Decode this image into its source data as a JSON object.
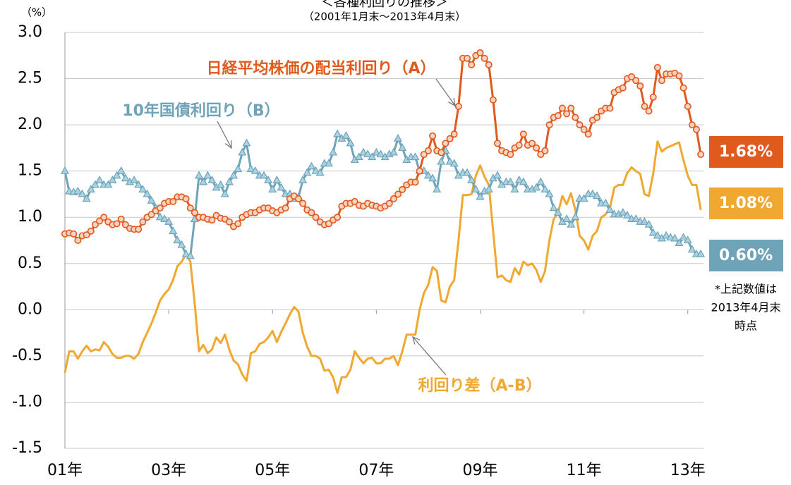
{
  "chart_data": {
    "type": "line",
    "title": "＜各種利回りの推移＞",
    "subtitle": "（2001年1月末～2013年4月末）",
    "y_label": "（%）",
    "categories": [
      "01年",
      null,
      null,
      null,
      null,
      null,
      null,
      null,
      null,
      null,
      null,
      null,
      null,
      null,
      null,
      null,
      null,
      null,
      null,
      null,
      null,
      null,
      null,
      null,
      "03年",
      null,
      null,
      null,
      null,
      null,
      null,
      null,
      null,
      null,
      null,
      null,
      null,
      null,
      null,
      null,
      null,
      null,
      null,
      null,
      null,
      null,
      null,
      null,
      "05年",
      null,
      null,
      null,
      null,
      null,
      null,
      null,
      null,
      null,
      null,
      null,
      null,
      null,
      null,
      null,
      null,
      null,
      null,
      null,
      null,
      null,
      null,
      null,
      "07年",
      null,
      null,
      null,
      null,
      null,
      null,
      null,
      null,
      null,
      null,
      null,
      null,
      null,
      null,
      null,
      null,
      null,
      null,
      null,
      null,
      null,
      null,
      null,
      "09年",
      null,
      null,
      null,
      null,
      null,
      null,
      null,
      null,
      null,
      null,
      null,
      null,
      null,
      null,
      null,
      null,
      null,
      null,
      null,
      null,
      null,
      null,
      null,
      "11年",
      null,
      null,
      null,
      null,
      null,
      null,
      null,
      null,
      null,
      null,
      null,
      null,
      null,
      null,
      null,
      null,
      null,
      null,
      null,
      null,
      null,
      null,
      null,
      "13年",
      null,
      null,
      null
    ],
    "series": [
      {
        "name": "日経平均株価の配当利回り（A）",
        "color": "#e05a1e",
        "marker": "circle",
        "end_label": "1.68%",
        "values": [
          0.82,
          0.83,
          0.82,
          0.75,
          0.8,
          0.81,
          0.85,
          0.92,
          0.96,
          1.0,
          0.95,
          0.92,
          0.93,
          0.98,
          0.92,
          0.88,
          0.87,
          0.87,
          0.95,
          1.0,
          1.03,
          1.07,
          1.1,
          1.15,
          1.17,
          1.17,
          1.22,
          1.22,
          1.2,
          1.1,
          1.05,
          1.0,
          1.0,
          0.98,
          0.97,
          1.02,
          0.99,
          0.98,
          0.95,
          0.9,
          0.93,
          1.0,
          1.03,
          1.05,
          1.05,
          1.08,
          1.1,
          1.1,
          1.07,
          1.05,
          1.08,
          1.1,
          1.2,
          1.23,
          1.2,
          1.15,
          1.08,
          1.05,
          1.0,
          0.95,
          0.92,
          0.93,
          0.97,
          1.0,
          1.12,
          1.15,
          1.15,
          1.17,
          1.13,
          1.12,
          1.15,
          1.13,
          1.12,
          1.1,
          1.12,
          1.15,
          1.2,
          1.25,
          1.3,
          1.35,
          1.38,
          1.38,
          1.5,
          1.68,
          1.72,
          1.88,
          1.72,
          1.7,
          1.8,
          1.85,
          1.9,
          2.2,
          2.72,
          2.72,
          2.65,
          2.75,
          2.78,
          2.72,
          2.65,
          2.27,
          1.8,
          1.72,
          1.7,
          1.68,
          1.75,
          1.78,
          1.9,
          1.78,
          1.8,
          1.75,
          1.68,
          1.72,
          2.0,
          2.08,
          2.1,
          2.18,
          2.12,
          2.18,
          2.08,
          2.0,
          1.95,
          1.9,
          2.05,
          2.08,
          2.15,
          2.18,
          2.18,
          2.35,
          2.38,
          2.4,
          2.5,
          2.52,
          2.48,
          2.42,
          2.2,
          2.15,
          2.3,
          2.62,
          2.48,
          2.55,
          2.55,
          2.56,
          2.53,
          2.4,
          2.2,
          2.0,
          1.95,
          1.68
        ]
      },
      {
        "name": "10年国債利回り（B）",
        "color": "#6fa3b8",
        "marker": "triangle",
        "end_label": "0.60%",
        "values": [
          1.5,
          1.28,
          1.27,
          1.28,
          1.25,
          1.2,
          1.3,
          1.35,
          1.4,
          1.35,
          1.35,
          1.4,
          1.45,
          1.5,
          1.42,
          1.38,
          1.4,
          1.35,
          1.3,
          1.25,
          1.18,
          1.1,
          1.0,
          0.98,
          0.95,
          0.85,
          0.75,
          0.7,
          0.6,
          0.58,
          0.98,
          1.45,
          1.38,
          1.45,
          1.4,
          1.32,
          1.35,
          1.25,
          1.38,
          1.45,
          1.52,
          1.7,
          1.8,
          1.52,
          1.5,
          1.45,
          1.45,
          1.4,
          1.3,
          1.4,
          1.32,
          1.25,
          1.25,
          1.2,
          1.22,
          1.4,
          1.48,
          1.55,
          1.5,
          1.48,
          1.58,
          1.58,
          1.7,
          1.9,
          1.85,
          1.88,
          1.8,
          1.62,
          1.65,
          1.7,
          1.68,
          1.65,
          1.7,
          1.68,
          1.65,
          1.68,
          1.7,
          1.85,
          1.75,
          1.62,
          1.65,
          1.65,
          1.5,
          1.5,
          1.45,
          1.42,
          1.3,
          1.6,
          1.72,
          1.6,
          1.58,
          1.45,
          1.48,
          1.48,
          1.4,
          1.3,
          1.22,
          1.28,
          1.3,
          1.42,
          1.45,
          1.35,
          1.38,
          1.38,
          1.3,
          1.4,
          1.38,
          1.3,
          1.3,
          1.32,
          1.38,
          1.3,
          1.25,
          1.1,
          1.05,
          0.95,
          0.98,
          0.92,
          1.0,
          1.2,
          1.2,
          1.25,
          1.25,
          1.23,
          1.15,
          1.15,
          1.08,
          1.03,
          1.03,
          1.05,
          1.02,
          0.98,
          0.98,
          0.95,
          0.95,
          0.92,
          0.83,
          0.8,
          0.77,
          0.8,
          0.78,
          0.77,
          0.72,
          0.78,
          0.75,
          0.65,
          0.6,
          0.6
        ]
      },
      {
        "name": "利回り差（A-B）",
        "color": "#f0a830",
        "end_label": "1.08%",
        "values": [
          -0.68,
          -0.45,
          -0.45,
          -0.53,
          -0.45,
          -0.39,
          -0.45,
          -0.43,
          -0.44,
          -0.35,
          -0.4,
          -0.48,
          -0.52,
          -0.52,
          -0.5,
          -0.5,
          -0.53,
          -0.48,
          -0.35,
          -0.25,
          -0.15,
          -0.03,
          0.1,
          0.17,
          0.22,
          0.32,
          0.47,
          0.52,
          0.6,
          0.52,
          0.07,
          -0.45,
          -0.38,
          -0.47,
          -0.43,
          -0.3,
          -0.36,
          -0.27,
          -0.43,
          -0.55,
          -0.59,
          -0.7,
          -0.77,
          -0.47,
          -0.45,
          -0.37,
          -0.35,
          -0.3,
          -0.23,
          -0.35,
          -0.24,
          -0.15,
          -0.05,
          0.03,
          -0.02,
          -0.25,
          -0.4,
          -0.5,
          -0.5,
          -0.53,
          -0.66,
          -0.65,
          -0.73,
          -0.9,
          -0.73,
          -0.73,
          -0.65,
          -0.45,
          -0.52,
          -0.58,
          -0.53,
          -0.52,
          -0.58,
          -0.58,
          -0.53,
          -0.53,
          -0.5,
          -0.6,
          -0.45,
          -0.27,
          -0.27,
          -0.27,
          0.0,
          0.18,
          0.27,
          0.46,
          0.42,
          0.1,
          0.08,
          0.25,
          0.32,
          0.75,
          1.24,
          1.24,
          1.25,
          1.45,
          1.56,
          1.44,
          1.35,
          0.85,
          0.35,
          0.37,
          0.32,
          0.3,
          0.45,
          0.38,
          0.52,
          0.48,
          0.5,
          0.43,
          0.3,
          0.42,
          0.75,
          0.98,
          1.05,
          1.23,
          1.14,
          1.26,
          1.08,
          0.8,
          0.75,
          0.65,
          0.8,
          0.85,
          1.0,
          1.03,
          1.1,
          1.32,
          1.35,
          1.35,
          1.48,
          1.54,
          1.5,
          1.47,
          1.25,
          1.23,
          1.47,
          1.82,
          1.71,
          1.75,
          1.77,
          1.79,
          1.81,
          1.62,
          1.45,
          1.35,
          1.35,
          1.08
        ]
      }
    ],
    "ylim": [
      -1.5,
      3.0
    ],
    "yticks": [
      {
        "value": 3,
        "label": "3.0"
      },
      2.5,
      {
        "value": 2,
        "label": "2.0"
      },
      1.5,
      {
        "value": 1,
        "label": "1.0"
      },
      0.5,
      {
        "value": 0,
        "label": "0.0"
      },
      -0.5,
      {
        "value": -1,
        "label": "-1.0"
      },
      -1.5
    ],
    "grid": true,
    "note": [
      "*上記数値は",
      "2013年4月末",
      "時点"
    ]
  }
}
